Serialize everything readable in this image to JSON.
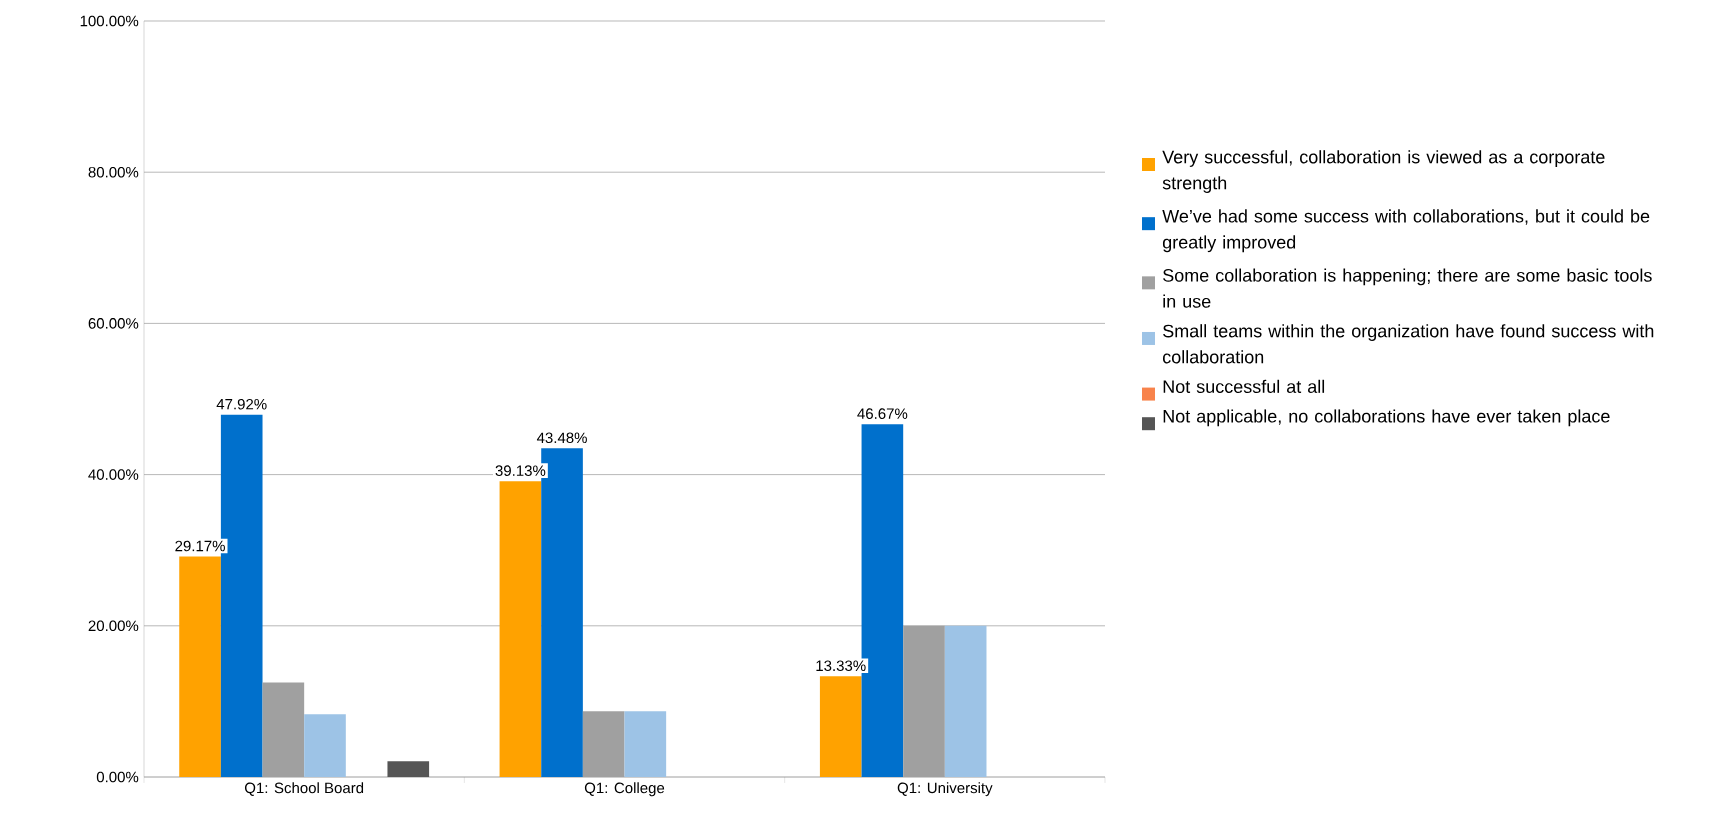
{
  "chart_data": {
    "type": "bar",
    "categories": [
      "Q1: School Board",
      "Q1: College",
      "Q1: University"
    ],
    "series": [
      {
        "name": "Very successful, collaboration is viewed as a corporate strength",
        "color": "#ffa200",
        "values": [
          29.17,
          39.13,
          13.33
        ],
        "value_labels": [
          "29.17%",
          "39.13%",
          "13.33%"
        ]
      },
      {
        "name": "We’ve had some success with collaborations, but it could be greatly improved",
        "color": "#0070cc",
        "values": [
          47.92,
          43.48,
          46.67
        ],
        "value_labels": [
          "47.92%",
          "43.48%",
          "46.67%"
        ]
      },
      {
        "name": "Some collaboration is happening; there are some basic tools in use",
        "color": "#a0a0a0",
        "values": [
          12.5,
          8.7,
          20
        ]
      },
      {
        "name": "Small teams within the organization have found success with collaboration",
        "color": "#9dc3e6",
        "values": [
          8.3,
          8.7,
          20
        ]
      },
      {
        "name": "Not successful at all",
        "color": "#f8834b",
        "values": [
          0,
          0,
          0
        ]
      },
      {
        "name": "Not applicable, no collaborations have ever taken place",
        "color": "#555555",
        "values": [
          2.1,
          0,
          0
        ]
      }
    ],
    "ylim": [
      0,
      100
    ],
    "yticks": [
      {
        "value": 0,
        "label": "0.00%"
      },
      {
        "value": 20,
        "label": "20.00%"
      },
      {
        "value": 40,
        "label": "40.00%"
      },
      {
        "value": 60,
        "label": "60.00%"
      },
      {
        "value": 80,
        "label": "80.00%"
      },
      {
        "value": 100,
        "label": "100.00%"
      }
    ],
    "grid": "y",
    "legend": "right"
  }
}
